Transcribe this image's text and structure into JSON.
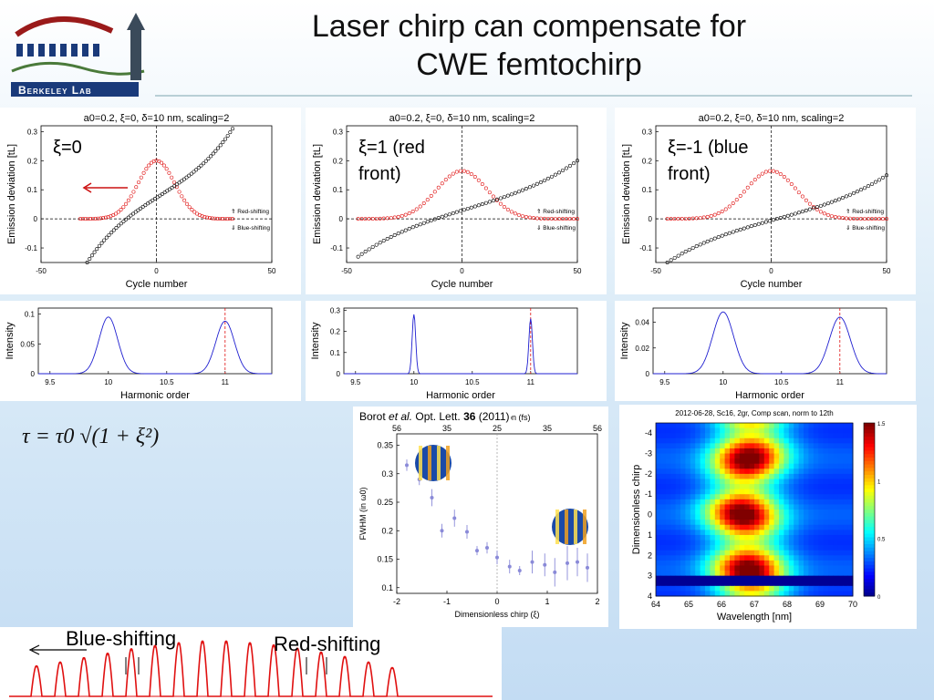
{
  "slide": {
    "title_line1": "Laser chirp can compensate for",
    "title_line2": "CWE femtochirp",
    "logo_text": "Berkeley Lab",
    "formula": "τ = τ0 √(1 + ξ²)",
    "blue_shift_label": "Blue-shifting",
    "red_shift_label": "Red-shifting",
    "citation": {
      "authors": "Borot ",
      "etal": "et al.",
      "journal": " Opt. Lett. ",
      "volume": "36",
      "year": " (2011)"
    }
  },
  "colors": {
    "red": "#e01010",
    "black": "#000000",
    "blue": "#1f1fd0",
    "arrow_red": "#cc1010",
    "logo_blue": "#1a3a7a",
    "logo_red": "#9a1a1a"
  },
  "chart_data": [
    {
      "id": "emission-xi0",
      "type": "line",
      "title": "a0=0.2, ξ=0, δ=10 nm, scaling=2",
      "xlabel": "Cycle number",
      "ylabel": "Emission deviation [tL]",
      "xlim": [
        -50,
        50
      ],
      "ylim": [
        -0.15,
        0.32
      ],
      "xticks": [
        "-50",
        "0",
        "50"
      ],
      "yticks": [
        "-0.1",
        "0",
        "0.1",
        "0.2",
        "0.3"
      ],
      "annotation": "ξ=0",
      "legend_text": [
        "⇑ Red-shifting",
        "⇓ Blue-shifting"
      ],
      "series": [
        {
          "kind": "gaussian",
          "color": "red",
          "peak": 0.2,
          "center": 0,
          "sigma": 8,
          "x": [
            -33,
            33
          ]
        },
        {
          "kind": "chirp",
          "color": "black",
          "x": [
            -30,
            33
          ],
          "y": [
            -0.15,
            0.31
          ]
        }
      ]
    },
    {
      "id": "emission-xi1",
      "type": "line",
      "title": "a0=0.2, ξ=0, δ=10 nm, scaling=2",
      "xlabel": "Cycle number",
      "ylabel": "Emission deviation [tL]",
      "xlim": [
        -50,
        50
      ],
      "ylim": [
        -0.15,
        0.32
      ],
      "xticks": [
        "-50",
        "0",
        "50"
      ],
      "yticks": [
        "-0.1",
        "0",
        "0.1",
        "0.2",
        "0.3"
      ],
      "annotation_line1": "ξ=1 (red",
      "annotation_line2": "front)",
      "legend_text": [
        "⇑ Red-shifting",
        "⇓ Blue-shifting"
      ],
      "series": [
        {
          "kind": "gaussian",
          "color": "red",
          "peak": 0.165,
          "center": 0,
          "sigma": 11,
          "x": [
            -45,
            50
          ]
        },
        {
          "kind": "chirp",
          "color": "black",
          "x": [
            -45,
            50
          ],
          "y": [
            -0.13,
            0.2
          ]
        }
      ]
    },
    {
      "id": "emission-xim1",
      "type": "line",
      "title": "a0=0.2, ξ=0, δ=10 nm, scaling=2",
      "xlabel": "Cycle number",
      "ylabel": "Emission deviation [tL]",
      "xlim": [
        -50,
        50
      ],
      "ylim": [
        -0.15,
        0.32
      ],
      "xticks": [
        "-50",
        "0",
        "50"
      ],
      "yticks": [
        "-0.1",
        "0",
        "0.1",
        "0.2",
        "0.3"
      ],
      "annotation_line1": "ξ=-1 (blue",
      "annotation_line2": "front)",
      "legend_text": [
        "⇑ Red-shifting",
        "⇓ Blue-shifting"
      ],
      "series": [
        {
          "kind": "gaussian",
          "color": "red",
          "peak": 0.165,
          "center": 0,
          "sigma": 11,
          "x": [
            -45,
            50
          ]
        },
        {
          "kind": "chirp",
          "color": "black",
          "x": [
            -45,
            50
          ],
          "y": [
            -0.15,
            0.15
          ]
        }
      ]
    },
    {
      "id": "harmonic-1",
      "type": "line",
      "xlabel": "Harmonic order",
      "ylabel": "Intensity",
      "xlim": [
        9.4,
        11.4
      ],
      "ylim": [
        0,
        0.11
      ],
      "xticks": [
        "9.5",
        "10",
        "10.5",
        "11"
      ],
      "yticks": [
        "0",
        "0.05",
        "0.1"
      ],
      "series": [
        {
          "name": "",
          "peaks": [
            [
              10,
              0.095
            ],
            [
              11,
              0.088
            ]
          ],
          "width": 0.08
        }
      ]
    },
    {
      "id": "harmonic-2",
      "type": "line",
      "xlabel": "Harmonic order",
      "ylabel": "Intensity",
      "xlim": [
        9.4,
        11.4
      ],
      "ylim": [
        0,
        0.31
      ],
      "xticks": [
        "9.5",
        "10",
        "10.5",
        "11"
      ],
      "yticks": [
        "0",
        "0.1",
        "0.2",
        "0.3"
      ],
      "series": [
        {
          "name": "",
          "peaks": [
            [
              10,
              0.28
            ],
            [
              11,
              0.26
            ]
          ],
          "width": 0.015
        }
      ]
    },
    {
      "id": "harmonic-3",
      "type": "line",
      "xlabel": "Harmonic order",
      "ylabel": "Intensity",
      "xlim": [
        9.4,
        11.4
      ],
      "ylim": [
        0,
        0.051
      ],
      "xticks": [
        "9.5",
        "10",
        "10.5",
        "11"
      ],
      "yticks": [
        "0",
        "0.02",
        "0.04"
      ],
      "series": [
        {
          "name": "",
          "peaks": [
            [
              10,
              0.048
            ],
            [
              11,
              0.044
            ]
          ],
          "width": 0.09
        }
      ]
    },
    {
      "id": "fwhm",
      "type": "scatter",
      "xlabel": "Dimensionless chirp (ξ)",
      "ylabel": "FWHM (in ω0)",
      "top_label": "Pulse duration (fs)",
      "xlim": [
        -2,
        2
      ],
      "ylim": [
        0.09,
        0.37
      ],
      "xticks": [
        "-2",
        "-1",
        "0",
        "1",
        "2"
      ],
      "yticks": [
        "0.1",
        "0.15",
        "0.2",
        "0.25",
        "0.3",
        "0.35"
      ],
      "top_ticks": [
        "56",
        "35",
        "25",
        "35",
        "56"
      ],
      "points": [
        [
          -1.8,
          0.315,
          0.01
        ],
        [
          -1.55,
          0.29,
          0.01
        ],
        [
          -1.3,
          0.258,
          0.015
        ],
        [
          -1.1,
          0.2,
          0.012
        ],
        [
          -0.85,
          0.222,
          0.015
        ],
        [
          -0.6,
          0.198,
          0.012
        ],
        [
          -0.4,
          0.165,
          0.008
        ],
        [
          -0.2,
          0.17,
          0.01
        ],
        [
          0.0,
          0.153,
          0.012
        ],
        [
          0.25,
          0.137,
          0.012
        ],
        [
          0.45,
          0.13,
          0.008
        ],
        [
          0.7,
          0.145,
          0.02
        ],
        [
          0.95,
          0.14,
          0.02
        ],
        [
          1.15,
          0.127,
          0.025
        ],
        [
          1.4,
          0.143,
          0.03
        ],
        [
          1.6,
          0.145,
          0.025
        ],
        [
          1.8,
          0.135,
          0.025
        ]
      ]
    },
    {
      "id": "scan-heatmap",
      "type": "heatmap",
      "title": "2012-06-28, Sc16, 2gr, Comp scan, norm to 12th",
      "xlabel": "Wavelength [nm]",
      "ylabel": "Dimensionless chirp",
      "xlim": [
        64,
        70
      ],
      "ylim": [
        -4.5,
        4
      ],
      "xticks": [
        "64",
        "65",
        "66",
        "67",
        "68",
        "69",
        "70"
      ],
      "yticks": [
        "-4",
        "-3",
        "-2",
        "-1",
        "0",
        "1",
        "2",
        "3",
        "4"
      ],
      "colorbar_ticks": [
        "0",
        "0.5",
        "1",
        "1.5"
      ],
      "ridge_center": [
        [
          -4.5,
          66.9
        ],
        [
          -3.5,
          66.9
        ],
        [
          -2.5,
          66.8
        ],
        [
          -1.5,
          66.7
        ],
        [
          -0.5,
          66.6
        ],
        [
          0.5,
          66.7
        ],
        [
          1.5,
          66.8
        ],
        [
          2.5,
          66.8
        ],
        [
          3.5,
          66.9
        ]
      ]
    },
    {
      "id": "harmonic-train",
      "type": "line",
      "series": [
        {
          "name": "",
          "peak_heights": [
            0.55,
            0.62,
            0.7,
            0.78,
            0.86,
            0.92,
            0.97,
            1.0,
            1.0,
            0.97,
            0.93,
            0.87,
            0.8,
            0.72,
            0.62,
            0.52
          ]
        }
      ]
    }
  ]
}
